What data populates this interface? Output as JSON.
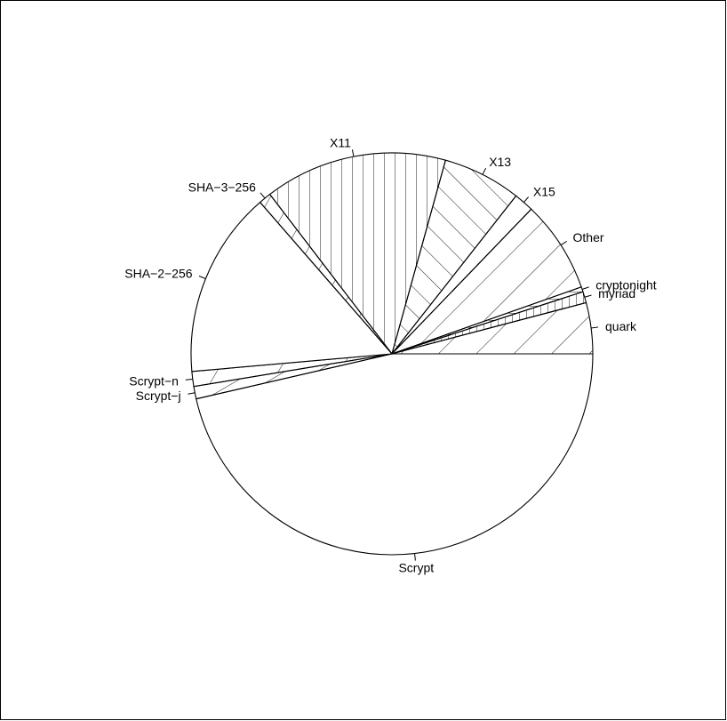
{
  "chart_data": {
    "type": "pie",
    "title": "",
    "labels": [
      "Scrypt",
      "Scrypt-j",
      "Scrypt-n",
      "SHA-2-256",
      "SHA-3-256",
      "X11",
      "X13",
      "X15",
      "Other",
      "cryptonight",
      "myriad",
      "quark"
    ],
    "values": [
      46.4,
      1.0,
      1.2,
      15.0,
      1.0,
      14.7,
      6.3,
      1.6,
      7.4,
      0.4,
      0.9,
      4.1
    ],
    "hatch_angles": [
      null,
      30,
      60,
      null,
      60,
      90,
      135,
      45,
      45,
      0,
      90,
      45
    ],
    "hatch_spacing": [
      0,
      18,
      60,
      0,
      22,
      12,
      20,
      56,
      32,
      8,
      8,
      30
    ],
    "start_angle_deg": 0,
    "direction": "clockwise",
    "colors": {
      "outline": "#000000",
      "hatch": "#000000",
      "fill": "#ffffff"
    }
  }
}
